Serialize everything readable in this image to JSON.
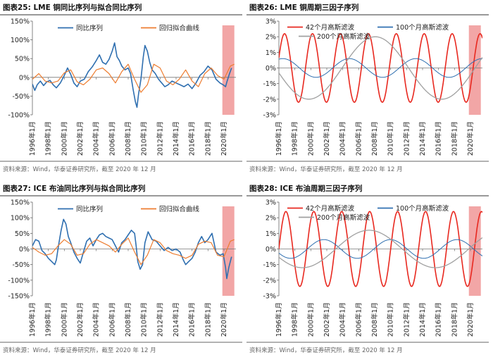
{
  "chart_data": [
    {
      "type": "line",
      "title": "图表25:  LME 铜同比序列与拟合同比序列",
      "source": "资料来源：Wind，华泰证券研究所，截至 2020 年 12 月",
      "x_ticks": [
        "1996年1月",
        "1998年1月",
        "2000年1月",
        "2002年1月",
        "2004年1月",
        "2006年1月",
        "2008年1月",
        "2010年1月",
        "2012年1月",
        "2014年1月",
        "2016年1月",
        "2018年1月",
        "2020年1月"
      ],
      "xlim": [
        1996,
        2021.5
      ],
      "ylim": [
        -100,
        150
      ],
      "y_ticks": [
        -100,
        -50,
        0,
        50,
        100,
        150
      ],
      "y_tick_labels": [
        "-100%",
        "-50%",
        "0%",
        "50%",
        "100%",
        "150%"
      ],
      "highlight": {
        "from": 2019.8,
        "to": 2021.3,
        "color": "#f2a6a6"
      },
      "legend_position": "top",
      "series": [
        {
          "name": "同比序列",
          "color": "#2f6fb0",
          "width": 1.6,
          "x": [
            1996.0,
            1996.3,
            1996.6,
            1997.0,
            1997.4,
            1997.8,
            1998.2,
            1998.6,
            1999.0,
            1999.5,
            2000.0,
            2000.4,
            2000.8,
            2001.2,
            2001.6,
            2002.0,
            2002.5,
            2003.0,
            2003.5,
            2004.0,
            2004.4,
            2004.8,
            2005.2,
            2005.6,
            2006.0,
            2006.3,
            2006.6,
            2006.9,
            2007.2,
            2007.6,
            2008.0,
            2008.3,
            2008.6,
            2008.9,
            2009.1,
            2009.3,
            2009.6,
            2009.9,
            2010.1,
            2010.4,
            2010.7,
            2011.0,
            2011.4,
            2011.8,
            2012.2,
            2012.6,
            2013.0,
            2013.5,
            2014.0,
            2014.5,
            2015.0,
            2015.5,
            2016.0,
            2016.5,
            2017.0,
            2017.5,
            2018.0,
            2018.5,
            2019.0,
            2019.5,
            2019.9,
            2020.2,
            2020.4,
            2020.7,
            2020.95
          ],
          "y": [
            -18,
            -35,
            -20,
            -10,
            -22,
            -12,
            -8,
            -20,
            -28,
            -15,
            5,
            25,
            8,
            -15,
            -25,
            -10,
            -5,
            15,
            28,
            45,
            60,
            40,
            35,
            48,
            70,
            92,
            55,
            45,
            30,
            20,
            25,
            10,
            -30,
            -65,
            -80,
            -45,
            -5,
            55,
            85,
            70,
            40,
            20,
            10,
            -5,
            -15,
            -25,
            -20,
            -10,
            -15,
            -20,
            -25,
            -18,
            -30,
            -15,
            5,
            15,
            30,
            20,
            -5,
            -15,
            -20,
            -25,
            -10,
            10,
            25
          ]
        },
        {
          "name": "回归拟合曲线",
          "color": "#ed7d31",
          "width": 1.2,
          "x": [
            1996.0,
            1996.8,
            1997.6,
            1998.4,
            1999.2,
            2000.0,
            2000.8,
            2001.6,
            2002.4,
            2003.2,
            2004.0,
            2004.8,
            2005.6,
            2006.4,
            2007.2,
            2008.0,
            2008.8,
            2009.6,
            2010.4,
            2011.2,
            2012.0,
            2012.8,
            2013.6,
            2014.4,
            2015.2,
            2016.0,
            2016.8,
            2017.6,
            2018.4,
            2019.2,
            2020.0,
            2020.8,
            2021.3
          ],
          "y": [
            -5,
            10,
            -10,
            -15,
            -10,
            12,
            20,
            -12,
            -20,
            -5,
            20,
            25,
            10,
            -15,
            15,
            35,
            -5,
            -40,
            -20,
            35,
            25,
            -10,
            -20,
            -5,
            20,
            -10,
            -25,
            10,
            25,
            5,
            -5,
            30,
            35
          ]
        }
      ]
    },
    {
      "type": "line",
      "title": "图表26:  LME 铜周期三因子序列",
      "source": "资料来源：Wind，华泰证券研究所，截至 2020 年 12 月",
      "x_ticks": [
        "1996年1月",
        "1998年1月",
        "2000年1月",
        "2002年1月",
        "2004年1月",
        "2006年1月",
        "2008年1月",
        "2010年1月",
        "2012年1月",
        "2014年1月",
        "2016年1月",
        "2018年1月",
        "2020年1月"
      ],
      "xlim": [
        1996,
        2021.5
      ],
      "ylim": [
        -3,
        3
      ],
      "y_ticks": [
        -3,
        -2,
        -1,
        0,
        1,
        2,
        3
      ],
      "y_tick_labels": [
        "-3%",
        "-2%",
        "-1%",
        "0%",
        "1%",
        "2%",
        "3%"
      ],
      "highlight": {
        "from": 2019.8,
        "to": 2021.3,
        "color": "#f2a6a6"
      },
      "legend_position": "top",
      "series": [
        {
          "name": "42个月高斯滤波",
          "color": "#e8281f",
          "width": 1.6,
          "amplitude": 2.2,
          "period_months": 42,
          "phase": 0.3
        },
        {
          "name": "100个月高斯滤波",
          "color": "#2f6fb0",
          "width": 1.0,
          "amplitude": 0.6,
          "period_months": 100,
          "phase": 1.2
        },
        {
          "name": "200个月高斯滤波",
          "color": "#a0a0a0",
          "width": 1.3,
          "amplitude": 2.0,
          "period_months": 200,
          "phase": 3.3
        }
      ]
    },
    {
      "type": "line",
      "title": "图表27:  ICE 布油同比序列与拟合同比序列",
      "source": "资料来源：Wind，华泰证券研究所，截至 2020 年 12 月",
      "x_ticks": [
        "1996年1月",
        "1998年1月",
        "2000年1月",
        "2002年1月",
        "2004年1月",
        "2006年1月",
        "2008年1月",
        "2010年1月",
        "2012年1月",
        "2014年1月",
        "2016年1月",
        "2018年1月",
        "2020年1月"
      ],
      "xlim": [
        1996,
        2021.5
      ],
      "ylim": [
        -150,
        150
      ],
      "y_ticks": [
        -150,
        -100,
        -50,
        0,
        50,
        100,
        150
      ],
      "y_tick_labels": [
        "-150%",
        "-100%",
        "-50%",
        "0%",
        "50%",
        "100%",
        "150%"
      ],
      "highlight": {
        "from": 2019.8,
        "to": 2021.3,
        "color": "#f2a6a6"
      },
      "legend_position": "top",
      "series": [
        {
          "name": "同比序列",
          "color": "#2f6fb0",
          "width": 1.6,
          "x": [
            1996.0,
            1996.4,
            1996.8,
            1997.2,
            1997.6,
            1998.0,
            1998.4,
            1998.8,
            1999.0,
            1999.3,
            1999.6,
            1999.9,
            2000.2,
            2000.5,
            2000.8,
            2001.2,
            2001.6,
            2002.0,
            2002.4,
            2002.8,
            2003.2,
            2003.6,
            2004.0,
            2004.4,
            2004.8,
            2005.2,
            2005.6,
            2006.0,
            2006.4,
            2006.8,
            2007.2,
            2007.6,
            2008.0,
            2008.4,
            2008.8,
            2009.0,
            2009.2,
            2009.5,
            2009.8,
            2010.1,
            2010.5,
            2011.0,
            2011.5,
            2012.0,
            2012.5,
            2013.0,
            2013.5,
            2014.0,
            2014.5,
            2014.9,
            2015.2,
            2015.6,
            2016.0,
            2016.4,
            2016.8,
            2017.2,
            2017.6,
            2018.0,
            2018.5,
            2019.0,
            2019.5,
            2019.9,
            2020.2,
            2020.35,
            2020.6,
            2020.95
          ],
          "y": [
            10,
            30,
            25,
            -5,
            -15,
            -30,
            -40,
            -50,
            -35,
            15,
            60,
            95,
            80,
            40,
            20,
            -10,
            -30,
            -45,
            -10,
            25,
            35,
            10,
            30,
            45,
            50,
            40,
            35,
            30,
            10,
            -10,
            20,
            30,
            45,
            60,
            50,
            10,
            -40,
            -65,
            -50,
            20,
            55,
            30,
            25,
            10,
            -5,
            5,
            -5,
            0,
            -10,
            -35,
            -50,
            -40,
            -30,
            -10,
            20,
            40,
            20,
            30,
            50,
            -10,
            -20,
            -15,
            -60,
            -95,
            -60,
            -25
          ]
        },
        {
          "name": "回归拟合曲线",
          "color": "#ed7d31",
          "width": 1.2,
          "x": [
            1996.0,
            1996.8,
            1997.6,
            1998.4,
            1999.2,
            2000.0,
            2000.8,
            2001.6,
            2002.4,
            2003.2,
            2004.0,
            2004.8,
            2005.6,
            2006.4,
            2007.2,
            2008.0,
            2008.8,
            2009.6,
            2010.4,
            2011.2,
            2012.0,
            2012.8,
            2013.6,
            2014.4,
            2015.2,
            2016.0,
            2016.8,
            2017.6,
            2018.4,
            2019.2,
            2020.0,
            2020.8,
            2021.3
          ],
          "y": [
            5,
            -10,
            -20,
            -15,
            10,
            30,
            15,
            -20,
            -15,
            15,
            30,
            20,
            10,
            -10,
            15,
            35,
            -10,
            -50,
            -20,
            30,
            20,
            -5,
            -15,
            -20,
            -30,
            -20,
            15,
            25,
            20,
            -20,
            -25,
            25,
            30
          ]
        }
      ]
    },
    {
      "type": "line",
      "title": "图表28:  ICE 布油周期三因子序列",
      "source": "资料来源：Wind，华泰证券研究所，截至 2020 年 12 月",
      "x_ticks": [
        "1996年1月",
        "1998年1月",
        "2000年1月",
        "2002年1月",
        "2004年1月",
        "2006年1月",
        "2008年1月",
        "2010年1月",
        "2012年1月",
        "2014年1月",
        "2016年1月",
        "2018年1月",
        "2020年1月"
      ],
      "xlim": [
        1996,
        2021.5
      ],
      "ylim": [
        -3,
        3
      ],
      "y_ticks": [
        -3,
        -2,
        -1,
        0,
        1,
        2,
        3
      ],
      "y_tick_labels": [
        "-3%",
        "-2%",
        "-1%",
        "0%",
        "1%",
        "2%",
        "3%"
      ],
      "highlight": {
        "from": 2019.8,
        "to": 2021.3,
        "color": "#f2a6a6"
      },
      "legend_position": "top",
      "series": [
        {
          "name": "42个月高斯滤波",
          "color": "#e8281f",
          "width": 1.6,
          "amplitude": 2.4,
          "period_months": 42,
          "phase": 0.0
        },
        {
          "name": "100个月高斯滤波",
          "color": "#2f6fb0",
          "width": 1.0,
          "amplitude": 0.6,
          "period_months": 100,
          "phase": 3.6
        },
        {
          "name": "200个月高斯滤波",
          "color": "#a0a0a0",
          "width": 1.3,
          "amplitude": 1.2,
          "period_months": 200,
          "phase": 3.6
        }
      ]
    }
  ]
}
